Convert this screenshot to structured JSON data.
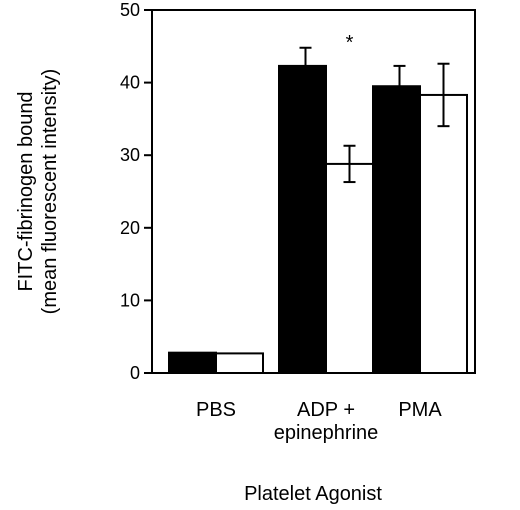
{
  "chart_data": {
    "type": "bar",
    "categories": [
      {
        "lines": [
          "PBS"
        ]
      },
      {
        "lines": [
          "ADP +",
          "epinephrine"
        ]
      },
      {
        "lines": [
          "PMA"
        ]
      }
    ],
    "series": [
      {
        "color": "#000000",
        "values": [
          2.8,
          42.3,
          39.5
        ],
        "error": [
          0,
          2.5,
          2.8
        ]
      },
      {
        "color": "#ffffff",
        "values": [
          2.7,
          28.8,
          38.3
        ],
        "error": [
          0,
          2.5,
          4.3
        ]
      }
    ],
    "ylim": [
      0,
      50
    ],
    "yticks": [
      0,
      10,
      20,
      30,
      40,
      50
    ],
    "ylabel_lines": [
      "FITC-fibrinogen bound",
      "(mean fluorescent intensity)"
    ],
    "xlabel": "Platelet Agonist",
    "annotations": [
      {
        "text": "*",
        "category_index": 1,
        "series_index": 1,
        "y": 46
      }
    ],
    "grid": false,
    "legend": "none"
  }
}
